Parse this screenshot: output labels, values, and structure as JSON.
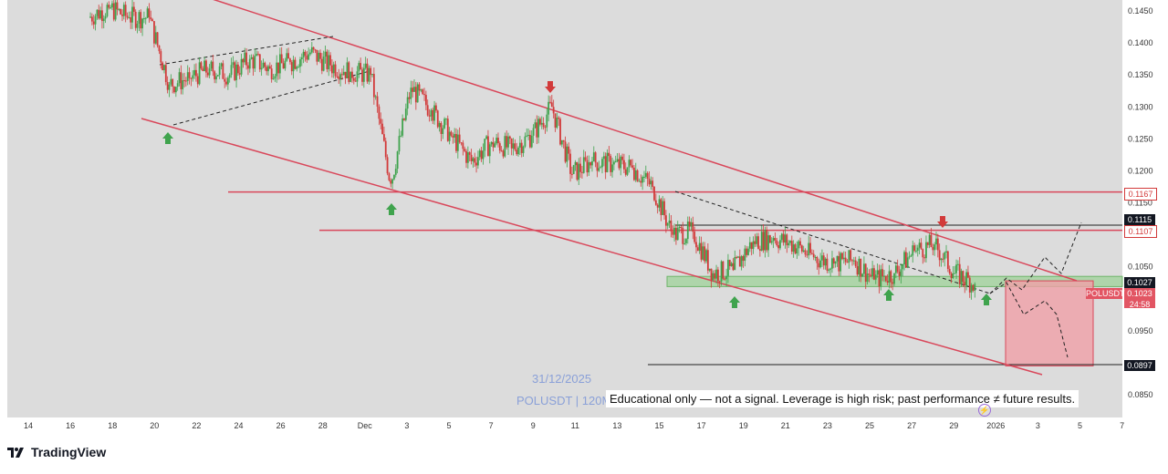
{
  "chart_data": {
    "type": "candlestick",
    "title": "",
    "symbol_label": "POLUSDT",
    "watermark_date": "31/12/2025",
    "watermark_symbol": "POLUSDT | 120M",
    "disclaimer": "Educational only — not a signal. Leverage is high risk; past performance ≠ future results.",
    "y_axis": {
      "range": [
        0.0835,
        0.1475
      ],
      "ticks": [
        "0.1450",
        "0.1400",
        "0.1350",
        "0.1300",
        "0.1250",
        "0.1200",
        "0.1150",
        "0.1050",
        "0.0950",
        "0.0850"
      ]
    },
    "x_axis": {
      "ticks": [
        "14",
        "16",
        "18",
        "20",
        "22",
        "24",
        "26",
        "28",
        "Dec",
        "3",
        "5",
        "7",
        "9",
        "11",
        "13",
        "15",
        "17",
        "19",
        "21",
        "23",
        "25",
        "27",
        "29",
        "2026",
        "3",
        "5",
        "7"
      ]
    },
    "price_tags": [
      {
        "value": "0.1167",
        "style": "red"
      },
      {
        "value": "0.1115",
        "style": "black"
      },
      {
        "value": "0.1107",
        "style": "red"
      },
      {
        "value": "0.1027",
        "style": "black"
      },
      {
        "value": "0.1023",
        "style": "red-solid",
        "sub": "24:58"
      },
      {
        "value": "0.0897",
        "style": "black"
      }
    ],
    "horizontal_levels": [
      0.1167,
      0.1107,
      0.1115,
      0.0897
    ],
    "support_zone": [
      0.1019,
      0.1035
    ],
    "target_zone": [
      0.0895,
      0.1028
    ],
    "close_series": [
      {
        "d": "Nov 17",
        "c": 0.144
      },
      {
        "d": "Nov 18",
        "c": 0.1455
      },
      {
        "d": "Nov 19",
        "c": 0.144
      },
      {
        "d": "Nov 20",
        "c": 0.144
      },
      {
        "d": "Nov 21",
        "c": 0.1335
      },
      {
        "d": "Nov 22",
        "c": 0.1345
      },
      {
        "d": "Nov 23",
        "c": 0.136
      },
      {
        "d": "Nov 24",
        "c": 0.135
      },
      {
        "d": "Nov 25",
        "c": 0.1375
      },
      {
        "d": "Nov 26",
        "c": 0.136
      },
      {
        "d": "Nov 27",
        "c": 0.137
      },
      {
        "d": "Nov 28",
        "c": 0.1385
      },
      {
        "d": "Nov 29",
        "c": 0.1365
      },
      {
        "d": "Nov 30",
        "c": 0.1355
      },
      {
        "d": "Dec 1",
        "c": 0.135
      },
      {
        "d": "Dec 2",
        "c": 0.118
      },
      {
        "d": "Dec 3",
        "c": 0.133
      },
      {
        "d": "Dec 4",
        "c": 0.1295
      },
      {
        "d": "Dec 5",
        "c": 0.1255
      },
      {
        "d": "Dec 6",
        "c": 0.1215
      },
      {
        "d": "Dec 7",
        "c": 0.1245
      },
      {
        "d": "Dec 8",
        "c": 0.1235
      },
      {
        "d": "Dec 9",
        "c": 0.1255
      },
      {
        "d": "Dec 10",
        "c": 0.13
      },
      {
        "d": "Dec 11",
        "c": 0.1195
      },
      {
        "d": "Dec 12",
        "c": 0.1215
      },
      {
        "d": "Dec 13",
        "c": 0.121
      },
      {
        "d": "Dec 14",
        "c": 0.1205
      },
      {
        "d": "Dec 15",
        "c": 0.1175
      },
      {
        "d": "Dec 16",
        "c": 0.11
      },
      {
        "d": "Dec 17",
        "c": 0.1105
      },
      {
        "d": "Dec 18",
        "c": 0.104
      },
      {
        "d": "Dec 19",
        "c": 0.1045
      },
      {
        "d": "Dec 20",
        "c": 0.109
      },
      {
        "d": "Dec 21",
        "c": 0.1095
      },
      {
        "d": "Dec 22",
        "c": 0.1085
      },
      {
        "d": "Dec 23",
        "c": 0.1065
      },
      {
        "d": "Dec 24",
        "c": 0.1055
      },
      {
        "d": "Dec 25",
        "c": 0.106
      },
      {
        "d": "Dec 26",
        "c": 0.103
      },
      {
        "d": "Dec 27",
        "c": 0.104
      },
      {
        "d": "Dec 28",
        "c": 0.1075
      },
      {
        "d": "Dec 29",
        "c": 0.1085
      },
      {
        "d": "Dec 30",
        "c": 0.104
      },
      {
        "d": "Dec 31",
        "c": 0.1023
      }
    ],
    "arrows": [
      {
        "dir": "up",
        "d": "Nov 21"
      },
      {
        "dir": "up",
        "d": "Dec 2"
      },
      {
        "dir": "down",
        "d": "Dec 10"
      },
      {
        "dir": "up",
        "d": "Dec 19"
      },
      {
        "dir": "up",
        "d": "Dec 26"
      },
      {
        "dir": "down",
        "d": "Dec 29"
      },
      {
        "dir": "up",
        "d": "Dec 31"
      }
    ]
  },
  "footer": {
    "brand": "TradingView"
  },
  "colors": {
    "bull": "#3fa34d",
    "bear": "#d23a3a",
    "channel": "#d9475a",
    "zone_green": "#9fd39a",
    "zone_red": "#f0a0a8"
  }
}
